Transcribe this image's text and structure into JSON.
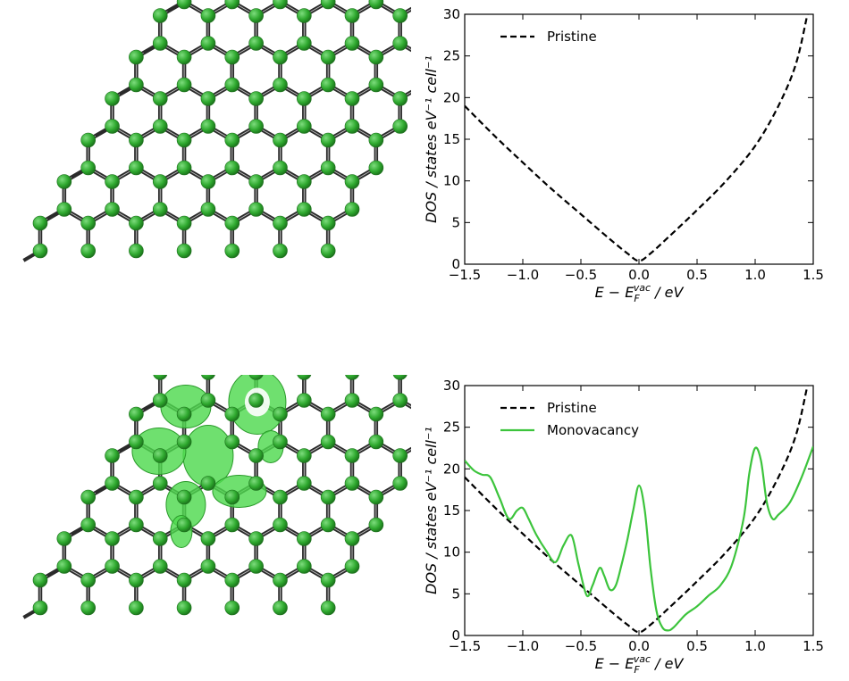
{
  "colors": {
    "atom": "#2ea82e",
    "atom_highlight": "#7ddc7d",
    "atom_dark": "#1a6e1a",
    "bond": "#2b2b2b",
    "isosurface": "#4fd94f",
    "pristine_line": "#000000",
    "monovacancy_line": "#3cc43c"
  },
  "structures": [
    {
      "name": "pristine-graphene",
      "vacancy": false,
      "isosurface": false
    },
    {
      "name": "monovacancy-graphene",
      "vacancy": true,
      "isosurface": true
    }
  ],
  "chart_data": [
    {
      "type": "line",
      "title": "",
      "xlabel": "E − E_F^vac / eV",
      "ylabel": "DOS / states eV⁻¹ cell⁻¹",
      "xlim": [
        -1.5,
        1.5
      ],
      "ylim": [
        0,
        30
      ],
      "xticks": [
        "−1.5",
        "−1.0",
        "−0.5",
        "0.0",
        "0.5",
        "1.0",
        "1.5"
      ],
      "yticks": [
        "0",
        "5",
        "10",
        "15",
        "20",
        "25",
        "30"
      ],
      "legend_position": "top-left",
      "grid": false,
      "series": [
        {
          "name": "Pristine",
          "style": "dashed",
          "color": "#000000",
          "x": [
            -1.5,
            -1.25,
            -1.0,
            -0.75,
            -0.5,
            -0.25,
            -0.1,
            0.0,
            0.1,
            0.25,
            0.5,
            0.75,
            1.0,
            1.2,
            1.35,
            1.45
          ],
          "y": [
            19,
            15.5,
            12.2,
            9.0,
            6.0,
            3.0,
            1.3,
            0.4,
            1.3,
            3.2,
            6.5,
            10.0,
            14.2,
            19.0,
            24.0,
            30.0
          ]
        }
      ]
    },
    {
      "type": "line",
      "title": "",
      "xlabel": "E − E_F^vac / eV",
      "ylabel": "DOS / states eV⁻¹ cell⁻¹",
      "xlim": [
        -1.5,
        1.5
      ],
      "ylim": [
        0,
        30
      ],
      "xticks": [
        "−1.5",
        "−1.0",
        "−0.5",
        "0.0",
        "0.5",
        "1.0",
        "1.5"
      ],
      "yticks": [
        "0",
        "5",
        "10",
        "15",
        "20",
        "25",
        "30"
      ],
      "legend_position": "top-left",
      "grid": false,
      "series": [
        {
          "name": "Pristine",
          "style": "dashed",
          "color": "#000000",
          "x": [
            -1.5,
            -1.25,
            -1.0,
            -0.75,
            -0.5,
            -0.25,
            -0.1,
            0.0,
            0.1,
            0.25,
            0.5,
            0.75,
            1.0,
            1.2,
            1.35,
            1.45
          ],
          "y": [
            19,
            15.5,
            12.2,
            9.0,
            6.0,
            3.0,
            1.3,
            0.4,
            1.3,
            3.2,
            6.5,
            10.0,
            14.2,
            19.0,
            24.0,
            30.0
          ]
        },
        {
          "name": "Monovacancy",
          "style": "solid",
          "color": "#3cc43c",
          "x": [
            -1.5,
            -1.42,
            -1.35,
            -1.28,
            -1.2,
            -1.12,
            -1.05,
            -1.0,
            -0.95,
            -0.88,
            -0.8,
            -0.72,
            -0.65,
            -0.58,
            -0.52,
            -0.45,
            -0.4,
            -0.34,
            -0.3,
            -0.25,
            -0.2,
            -0.15,
            -0.1,
            -0.05,
            0.0,
            0.05,
            0.1,
            0.15,
            0.2,
            0.25,
            0.3,
            0.4,
            0.5,
            0.6,
            0.7,
            0.8,
            0.9,
            0.95,
            1.0,
            1.05,
            1.1,
            1.15,
            1.2,
            1.3,
            1.4,
            1.5
          ],
          "y": [
            21.0,
            19.8,
            19.3,
            19.0,
            16.5,
            14.0,
            15.0,
            15.3,
            14.0,
            12.0,
            10.2,
            8.8,
            10.8,
            12.0,
            8.5,
            4.8,
            6.0,
            8.1,
            7.2,
            5.5,
            6.0,
            8.5,
            11.5,
            15.0,
            18.0,
            15.0,
            8.0,
            3.0,
            1.0,
            0.6,
            1.0,
            2.5,
            3.5,
            4.8,
            6.0,
            8.5,
            14.0,
            19.5,
            22.5,
            21.0,
            16.0,
            14.0,
            14.5,
            16.0,
            19.0,
            22.7
          ]
        }
      ]
    }
  ]
}
